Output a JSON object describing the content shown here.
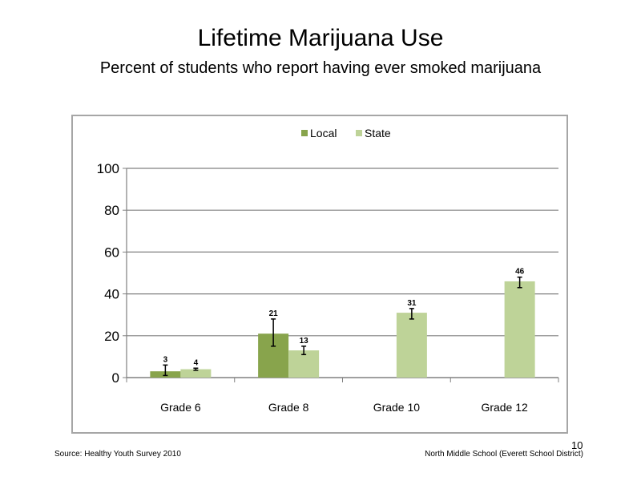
{
  "slide": {
    "title": "Lifetime  Marijuana  Use",
    "subtitle": "Percent  of students  who report having  ever smoked  marijuana",
    "source": "Source: Healthy Youth Survey 2010",
    "school": "North Middle  School (Everett School District)",
    "page_number": "10"
  },
  "chart_data": {
    "type": "bar",
    "title": "",
    "xlabel": "",
    "ylabel": "",
    "categories": [
      "Grade 6",
      "Grade 8",
      "Grade 10",
      "Grade 12"
    ],
    "ylim": [
      0,
      100
    ],
    "yticks": [
      0,
      20,
      40,
      60,
      80,
      100
    ],
    "grid": true,
    "legend_position": "top-center",
    "series": [
      {
        "name": "Local",
        "color": "#88a44c",
        "values": [
          3,
          21,
          null,
          null
        ],
        "labels": [
          "3",
          "21",
          "",
          ""
        ],
        "error": [
          [
            1,
            6
          ],
          [
            15,
            28
          ],
          null,
          null
        ]
      },
      {
        "name": "State",
        "color": "#bed398",
        "values": [
          4,
          13,
          31,
          46
        ],
        "labels": [
          "4",
          "13",
          "31",
          "46"
        ],
        "error": [
          [
            3.5,
            4.5
          ],
          [
            11,
            15
          ],
          [
            28,
            33
          ],
          [
            43,
            48
          ]
        ]
      }
    ]
  }
}
